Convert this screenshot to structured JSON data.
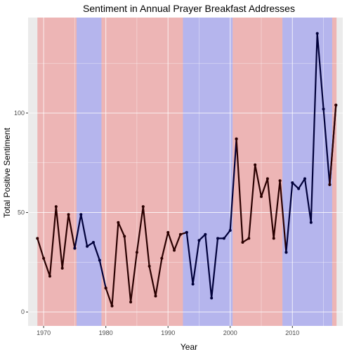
{
  "chart_data": {
    "type": "line",
    "title": "Sentiment in Annual Prayer Breakfast Addresses",
    "xlabel": "Year",
    "ylabel": "Total Positive Sentiment",
    "xlim": [
      1967.5,
      2018.1
    ],
    "ylim": [
      -7,
      148
    ],
    "x_ticks": [
      1970,
      1980,
      1990,
      2000,
      2010
    ],
    "y_ticks": [
      0,
      50,
      100
    ],
    "grid": true,
    "colors": {
      "panel": "#ebebeb",
      "grid": "#ffffff",
      "red_band": "#f08080",
      "blue_band": "#8080f0",
      "red_line": "#2a0000",
      "blue_line": "#00003a"
    },
    "bands": [
      {
        "start": 1969,
        "end": 1975.3,
        "color": "red_band"
      },
      {
        "start": 1975.3,
        "end": 1979.3,
        "color": "blue_band"
      },
      {
        "start": 1979.3,
        "end": 1992.4,
        "color": "red_band"
      },
      {
        "start": 1992.4,
        "end": 2000.4,
        "color": "blue_band"
      },
      {
        "start": 2000.4,
        "end": 2008.4,
        "color": "red_band"
      },
      {
        "start": 2008.4,
        "end": 2016.4,
        "color": "blue_band"
      },
      {
        "start": 2016.4,
        "end": 2017.1,
        "color": "red_band"
      }
    ],
    "series": [
      {
        "color": "red_line",
        "x": [
          1969,
          1970,
          1971,
          1972,
          1973,
          1974,
          1975
        ],
        "values": [
          37,
          27,
          18,
          53,
          22,
          49,
          32
        ]
      },
      {
        "color": "blue_line",
        "x": [
          1975,
          1976,
          1977,
          1978,
          1979,
          1980
        ],
        "values": [
          32,
          49,
          33,
          35,
          26,
          12
        ]
      },
      {
        "color": "red_line",
        "x": [
          1980,
          1981,
          1982,
          1983,
          1984,
          1985,
          1986,
          1987,
          1988,
          1989,
          1990,
          1991,
          1992,
          1993
        ],
        "values": [
          12,
          3,
          45,
          38,
          5,
          30,
          53,
          23,
          8,
          27,
          40,
          31,
          39,
          40
        ]
      },
      {
        "color": "blue_line",
        "x": [
          1993,
          1994,
          1995,
          1996,
          1997,
          1998,
          1999,
          2000,
          2001
        ],
        "values": [
          40,
          14,
          36,
          39,
          7,
          37,
          37,
          41,
          87
        ]
      },
      {
        "color": "red_line",
        "x": [
          2001,
          2002,
          2003,
          2004,
          2005,
          2006,
          2007,
          2008,
          2009
        ],
        "values": [
          87,
          35,
          37,
          74,
          58,
          67,
          37,
          66,
          30
        ]
      },
      {
        "color": "blue_line",
        "x": [
          2009,
          2010,
          2011,
          2012,
          2013,
          2014,
          2015,
          2016,
          2017
        ],
        "values": [
          30,
          65,
          62,
          67,
          45,
          140,
          102,
          64,
          104
        ]
      },
      {
        "color": "red_line",
        "x": [
          2016,
          2017
        ],
        "values": [
          64,
          104
        ]
      }
    ]
  }
}
